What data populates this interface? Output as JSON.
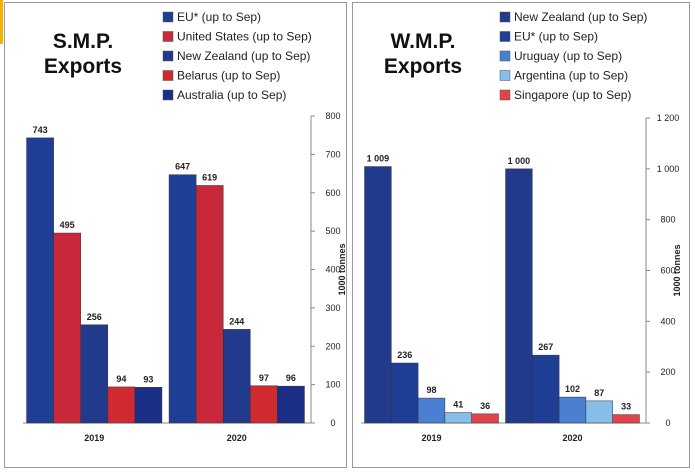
{
  "chart_data": [
    {
      "type": "bar",
      "title": "S.M.P. Exports",
      "y_label": "1000 tonnes",
      "categories": [
        "2019",
        "2020"
      ],
      "series": [
        {
          "name": "EU* (up to Sep)",
          "color": "#1f3f96",
          "values": [
            743,
            647
          ]
        },
        {
          "name": "United States (up to Sep)",
          "color": "#c9283a",
          "values": [
            495,
            619
          ]
        },
        {
          "name": "New Zealand (up to Sep)",
          "color": "#223a8c",
          "values": [
            256,
            244
          ]
        },
        {
          "name": "Belarus (up to Sep)",
          "color": "#cf2a2f",
          "values": [
            94,
            97
          ]
        },
        {
          "name": "Australia (up to Sep)",
          "color": "#1b2f86",
          "values": [
            93,
            96
          ]
        }
      ],
      "ylim": [
        0,
        800
      ],
      "yticks": [
        0,
        100,
        200,
        300,
        400,
        500,
        600,
        700,
        800
      ],
      "grid": false
    },
    {
      "type": "bar",
      "title": "W.M.P. Exports",
      "y_label": "1000 tonnes",
      "categories": [
        "2019",
        "2020"
      ],
      "series": [
        {
          "name": "New Zealand (up to Sep)",
          "color": "#223a8c",
          "values": [
            1009,
            1000
          ],
          "value_labels": [
            "1 009",
            "1 000"
          ]
        },
        {
          "name": "EU* (up to Sep)",
          "color": "#1f3f96",
          "values": [
            236,
            267
          ]
        },
        {
          "name": "Uruguay (up to Sep)",
          "color": "#4a7fd1",
          "values": [
            98,
            102
          ]
        },
        {
          "name": "Argentina (up to Sep)",
          "color": "#86bde9",
          "values": [
            41,
            87
          ]
        },
        {
          "name": "Singapore (up to Sep)",
          "color": "#e0444a",
          "values": [
            36,
            33
          ]
        }
      ],
      "ylim": [
        0,
        1200
      ],
      "yticks": [
        0,
        200,
        400,
        600,
        800,
        {
          "value": 1000,
          "label": "1 000"
        },
        {
          "value": 1200,
          "label": "1 200"
        }
      ],
      "grid": false
    }
  ]
}
